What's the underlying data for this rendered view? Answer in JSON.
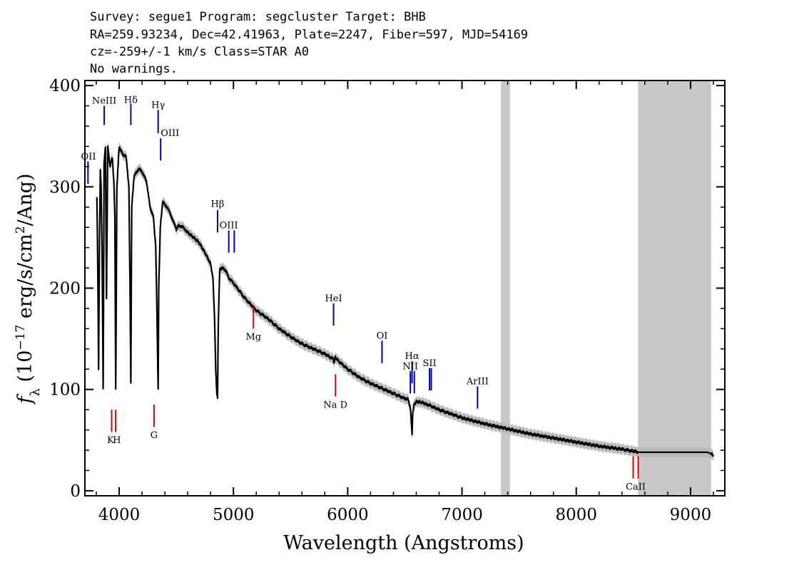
{
  "header": {
    "line1": "Survey: segue1 Program: segcluster Target: BHB",
    "line2": "RA=259.93234, Dec=42.41963, Plate=2247, Fiber=597, MJD=54169",
    "line3": "cz=-259+/-1 km/s Class=STAR A0",
    "line4": "No warnings."
  },
  "chart_data": {
    "type": "line",
    "title": "",
    "xlabel": "Wavelength (Angstroms)",
    "ylabel": "f_λ (10^-17 erg/s/cm^2/Ang)",
    "xlim": [
      3700,
      9300
    ],
    "ylim": [
      -5,
      405
    ],
    "x_ticks": [
      4000,
      5000,
      6000,
      7000,
      8000,
      9000
    ],
    "x_tick_labels": [
      "4000",
      "5000",
      "6000",
      "7000",
      "8000",
      "9000"
    ],
    "y_ticks": [
      0,
      100,
      200,
      300,
      400
    ],
    "y_tick_labels": [
      "0",
      "100",
      "200",
      "300",
      "400"
    ],
    "masked_regions": [
      [
        7340,
        7420
      ],
      [
        8540,
        9180
      ]
    ],
    "colors": {
      "flux": "#000000",
      "error_band": "#bbbbbb",
      "mask": "#c8c8c8",
      "emission": "#0000bb",
      "absorption": "#dd0000"
    },
    "series": [
      {
        "x": [
          3805,
          3812,
          3820,
          3828,
          3835,
          3842,
          3850,
          3860,
          3868,
          3880,
          3889,
          3900,
          3920,
          3940,
          3955,
          3962,
          3970,
          3980,
          4000,
          4030,
          4060,
          4085,
          4095,
          4102,
          4110,
          4130,
          4170,
          4200,
          4240,
          4270,
          4300,
          4320,
          4330,
          4338,
          4341,
          4346,
          4360,
          4380,
          4420,
          4460,
          4500,
          4520,
          4560,
          4600,
          4650,
          4700,
          4750,
          4800,
          4820,
          4835,
          4845,
          4855,
          4861,
          4868,
          4880,
          4900,
          4930,
          4960,
          5000,
          5100,
          5200,
          5300,
          5400,
          5500,
          5600,
          5700,
          5800,
          5875,
          5880,
          5890,
          5900,
          6000,
          6100,
          6200,
          6300,
          6400,
          6500,
          6530,
          6550,
          6558,
          6563,
          6568,
          6580,
          6600,
          6650,
          6700,
          6800,
          6900,
          7000,
          7200,
          7400,
          7600,
          7800,
          8000,
          8200,
          8400,
          8500,
          8550,
          8600,
          8800,
          9000,
          9150,
          9200
        ],
        "y": [
          290,
          230,
          120,
          250,
          318,
          300,
          240,
          100,
          325,
          340,
          190,
          340,
          320,
          330,
          300,
          270,
          100,
          300,
          340,
          332,
          330,
          300,
          200,
          107,
          280,
          310,
          318,
          315,
          305,
          280,
          270,
          240,
          180,
          120,
          100,
          200,
          260,
          285,
          280,
          270,
          258,
          262,
          260,
          255,
          250,
          245,
          235,
          224,
          210,
          170,
          120,
          95,
          93,
          170,
          218,
          220,
          218,
          210,
          205,
          190,
          178,
          170,
          160,
          152,
          145,
          140,
          135,
          130,
          125,
          132,
          130,
          120,
          112,
          106,
          101,
          96,
          91,
          90,
          80,
          65,
          55,
          75,
          85,
          88,
          87,
          85,
          80,
          76,
          72,
          66,
          61,
          56,
          52,
          48,
          44,
          41,
          39,
          38,
          38,
          38,
          38,
          38,
          35
        ]
      }
    ],
    "lines": {
      "emission": [
        {
          "name": "NeIII",
          "wl": 3869,
          "top": 361,
          "bot": 380,
          "label_y": 382,
          "anchor": "middle"
        },
        {
          "name": "Hδ",
          "wl": 4102,
          "top": 361,
          "bot": 382,
          "label_y": 383,
          "anchor": "middle"
        },
        {
          "name": "Hγ",
          "wl": 4341,
          "top": 353,
          "bot": 376,
          "label_y": 378,
          "anchor": "middle"
        },
        {
          "name": "OIII",
          "wl": 4363,
          "top": 326,
          "bot": 348,
          "label_y": 350,
          "anchor": "start"
        },
        {
          "name": "OII",
          "wl": 3727,
          "top": 303,
          "bot": 325,
          "label_y": 327,
          "anchor": "middle"
        },
        {
          "name": "Hβ",
          "wl": 4861,
          "top": 255,
          "bot": 277,
          "label_y": 280,
          "anchor": "middle"
        },
        {
          "name": "OIII",
          "wl": 4959,
          "top": 235,
          "bot": 257,
          "label_y": 259,
          "anchor": "middle"
        },
        {
          "name": "OIII",
          "wl": 5007,
          "top": 235,
          "bot": 257,
          "label_y": 259,
          "anchor": "middle"
        },
        {
          "name": "HeI",
          "wl": 5876,
          "top": 163,
          "bot": 185,
          "label_y": 187,
          "anchor": "middle"
        },
        {
          "name": "OI",
          "wl": 6300,
          "top": 126,
          "bot": 148,
          "label_y": 150,
          "anchor": "middle"
        },
        {
          "name": "NII",
          "wl": 6548,
          "top": 96,
          "bot": 118,
          "label_y": 120,
          "anchor": "middle"
        },
        {
          "name": "Hα",
          "wl": 6563,
          "top": 106,
          "bot": 128,
          "label_y": 130,
          "anchor": "middle"
        },
        {
          "name": "NII",
          "wl": 6583,
          "top": 96,
          "bot": 118,
          "label_y": 120,
          "anchor": "middle"
        },
        {
          "name": "SII",
          "wl": 6716,
          "top": 99,
          "bot": 121,
          "label_y": 123,
          "anchor": "middle"
        },
        {
          "name": "SII",
          "wl": 6731,
          "top": 99,
          "bot": 121,
          "label_y": 123,
          "anchor": "middle"
        },
        {
          "name": "ArIII",
          "wl": 7136,
          "top": 81,
          "bot": 103,
          "label_y": 105,
          "anchor": "middle"
        }
      ],
      "absorption": [
        {
          "name": "K",
          "wl": 3934,
          "top": 58,
          "bot": 80,
          "label_y": 54
        },
        {
          "name": "H",
          "wl": 3969,
          "top": 58,
          "bot": 80,
          "label_y": 54
        },
        {
          "name": "G",
          "wl": 4305,
          "top": 63,
          "bot": 85,
          "label_y": 59
        },
        {
          "name": "Mg",
          "wl": 5175,
          "top": 160,
          "bot": 182,
          "label_y": 156
        },
        {
          "name": "Na D",
          "wl": 5893,
          "top": 93,
          "bot": 115,
          "label_y": 89
        },
        {
          "name": "CaII",
          "wl": 8498,
          "top": 12,
          "bot": 34,
          "label_y": 8
        },
        {
          "name": "CaII",
          "wl": 8542,
          "top": 12,
          "bot": 34,
          "label_y": 8
        }
      ]
    }
  }
}
